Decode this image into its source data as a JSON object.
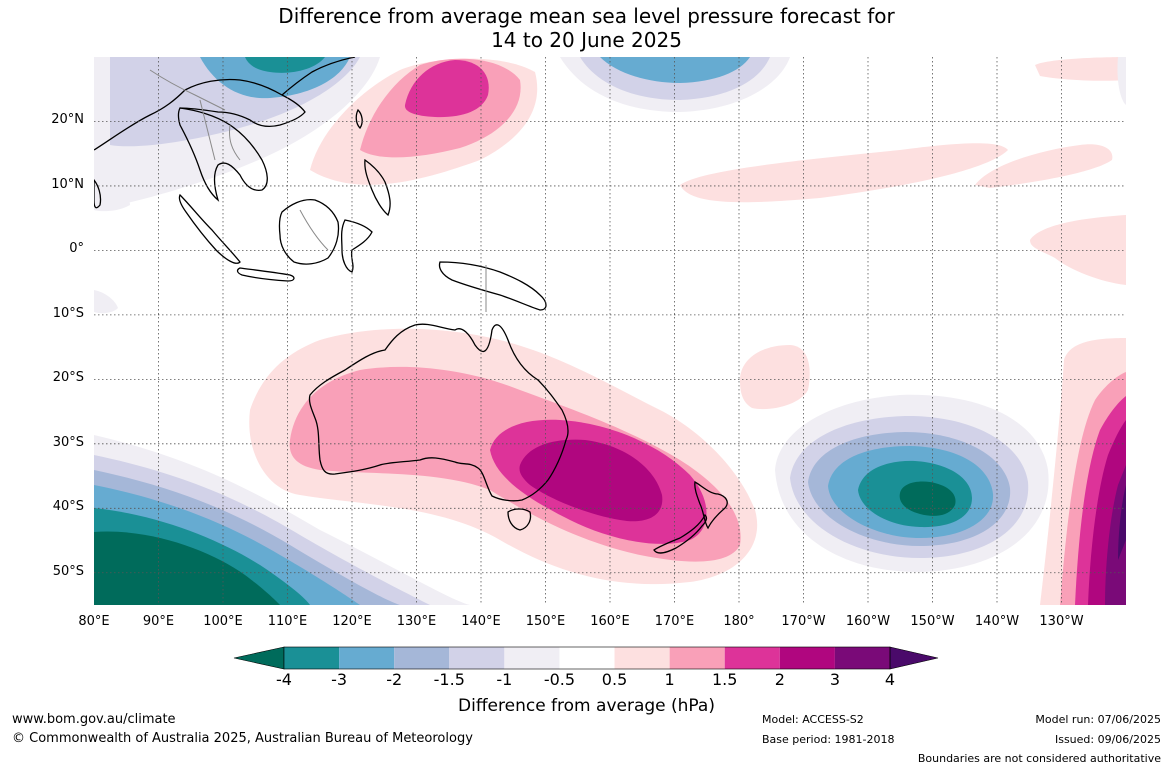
{
  "title": {
    "line1": "Difference from average mean sea level pressure forecast for",
    "line2": "14 to 20 June 2025"
  },
  "map": {
    "lat_labels": [
      "20°N",
      "10°N",
      "0°",
      "10°S",
      "20°S",
      "30°S",
      "40°S",
      "50°S"
    ],
    "lon_labels": [
      "80°E",
      "90°E",
      "100°E",
      "110°E",
      "120°E",
      "130°E",
      "140°E",
      "150°E",
      "160°E",
      "170°E",
      "180°",
      "170°W",
      "160°W",
      "150°W",
      "140°W",
      "130°W"
    ],
    "lat_range": [
      -55,
      30
    ],
    "lon_range": [
      80,
      240
    ]
  },
  "colorbar": {
    "label": "Difference from average (hPa)",
    "ticks": [
      "-4",
      "-3",
      "-2",
      "-1.5",
      "-1",
      "-0.5",
      "0.5",
      "1",
      "1.5",
      "2",
      "3",
      "4"
    ],
    "colors": [
      "#006b5b",
      "#1a9096",
      "#66abd1",
      "#a5b7d8",
      "#d2d2e8",
      "#f0eef4",
      "#ffffff",
      "#fde0e0",
      "#f9a0b8",
      "#dd3399",
      "#b0067f",
      "#7a0a78",
      "#4a0a6a"
    ]
  },
  "footer": {
    "website": "www.bom.gov.au/climate",
    "copyright": "© Commonwealth of Australia 2025, Australian Bureau of Meteorology",
    "model": "Model: ACCESS-S2",
    "base_period": "Base period: 1981-2018",
    "model_run": "Model run: 07/06/2025",
    "issued": "Issued: 09/06/2025",
    "disclaimer": "Boundaries are not considered authoritative"
  }
}
